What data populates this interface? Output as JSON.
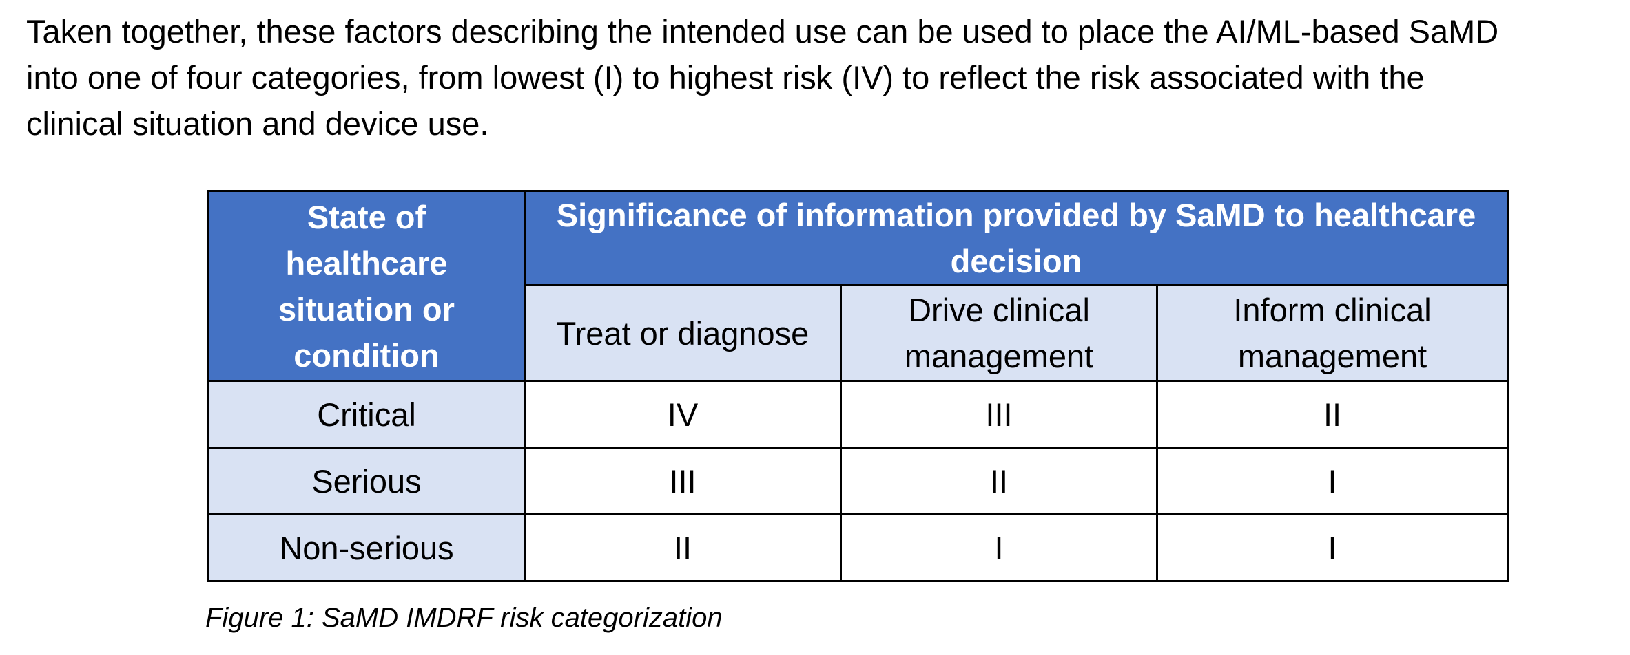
{
  "intro_lines": [
    "Taken together, these factors describing the intended use can be used to place the AI/ML-based SaMD",
    "into one of four categories, from lowest (I) to highest risk (IV) to reflect the risk associated with the",
    "clinical situation and device use."
  ],
  "table": {
    "row_header": [
      "State of",
      "healthcare",
      "situation or",
      "condition"
    ],
    "group_header": [
      "Significance of information provided by SaMD to healthcare",
      "decision"
    ],
    "columns": [
      [
        "Treat or diagnose"
      ],
      [
        "Drive clinical",
        "management"
      ],
      [
        "Inform clinical",
        "management"
      ]
    ],
    "rows": [
      {
        "label": "Critical",
        "values": [
          "IV",
          "III",
          "II"
        ]
      },
      {
        "label": "Serious",
        "values": [
          "III",
          "II",
          "I"
        ]
      },
      {
        "label": "Non-serious",
        "values": [
          "II",
          "I",
          "I"
        ]
      }
    ],
    "colors": {
      "header_blue": "#4472c4",
      "header_light": "#d9e2f3"
    }
  },
  "caption": "Figure 1: SaMD IMDRF risk categorization"
}
